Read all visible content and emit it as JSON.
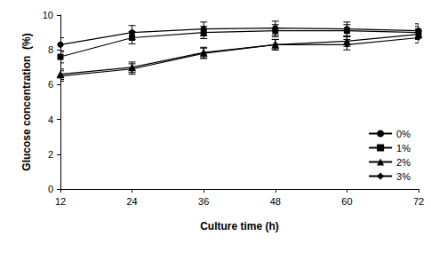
{
  "chart_data": {
    "type": "line",
    "x_label": "Culture time (h)",
    "y_label": "Glucose concentration  (%)",
    "x": [
      12,
      24,
      36,
      48,
      60,
      72
    ],
    "xlim": [
      12,
      72
    ],
    "xticks": [
      12,
      24,
      36,
      48,
      60,
      72
    ],
    "ylim": [
      0,
      10
    ],
    "yticks": [
      0,
      2,
      4,
      6,
      8,
      10
    ],
    "grid": false,
    "legend": "lower right",
    "series": [
      {
        "name": "0%",
        "color": "#000000",
        "marker": "circle",
        "line_style": "solid",
        "values": [
          8.3,
          9.0,
          9.2,
          9.25,
          9.2,
          9.1
        ],
        "errors": [
          0.4,
          0.4,
          0.4,
          0.4,
          0.4,
          0.4
        ]
      },
      {
        "name": "1%",
        "color": "#000000",
        "marker": "square",
        "line_style": "solid",
        "values": [
          7.6,
          8.7,
          9.0,
          9.1,
          9.1,
          9.0
        ],
        "errors": [
          0.35,
          0.35,
          0.35,
          0.35,
          0.35,
          0.35
        ]
      },
      {
        "name": "2%",
        "color": "#000000",
        "marker": "triangle",
        "line_style": "solid",
        "values": [
          6.6,
          7.0,
          7.85,
          8.3,
          8.5,
          8.9
        ],
        "errors": [
          0.3,
          0.3,
          0.3,
          0.3,
          0.3,
          0.3
        ]
      },
      {
        "name": "3%",
        "color": "#000000",
        "marker": "diamond",
        "line_style": "solid",
        "values": [
          6.5,
          6.9,
          7.8,
          8.3,
          8.3,
          8.7
        ],
        "errors": [
          0.3,
          0.3,
          0.3,
          0.3,
          0.3,
          0.3
        ]
      }
    ]
  }
}
